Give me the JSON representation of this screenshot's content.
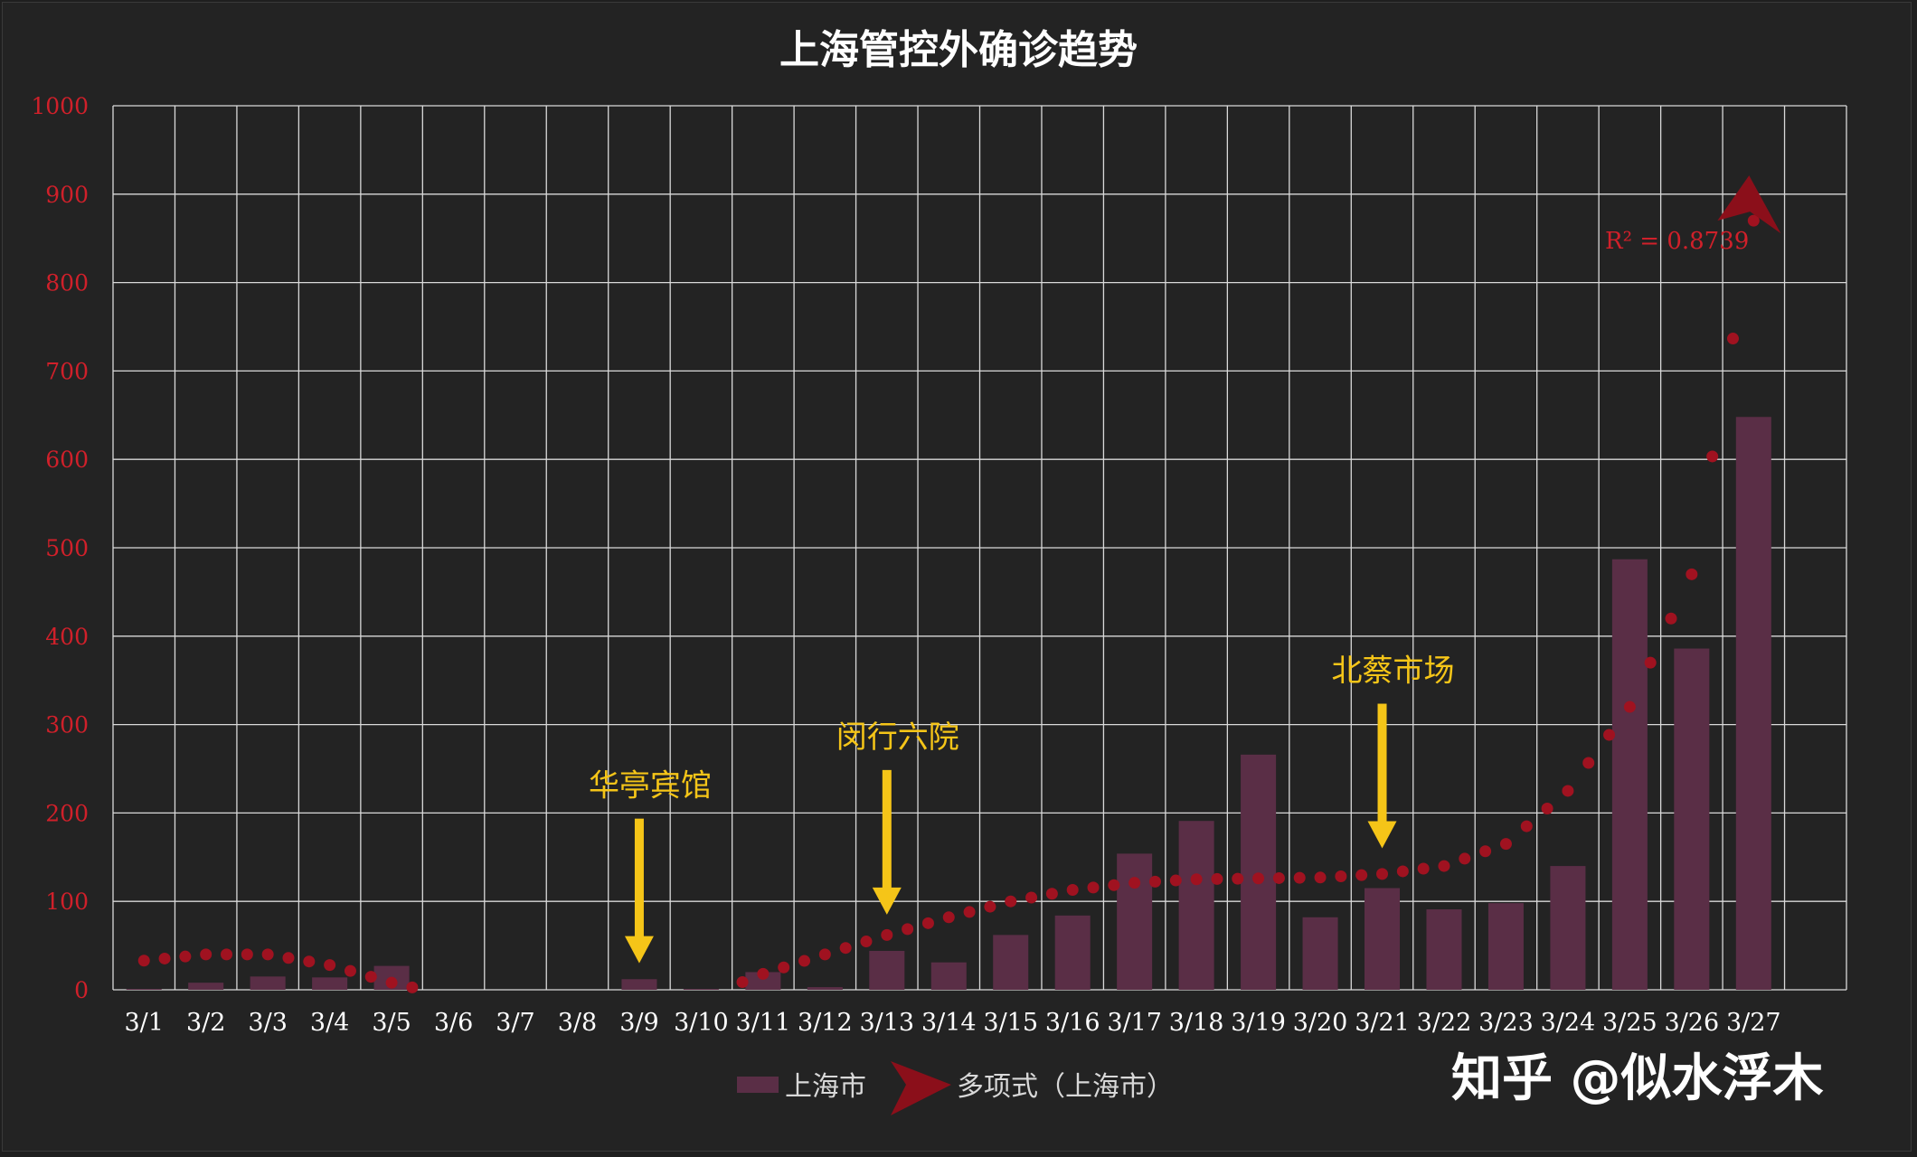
{
  "chart_data": {
    "type": "bar",
    "title": "上海管控外确诊趋势",
    "categories": [
      "3/1",
      "3/2",
      "3/3",
      "3/4",
      "3/5",
      "3/6",
      "3/7",
      "3/8",
      "3/9",
      "3/10",
      "3/11",
      "3/12",
      "3/13",
      "3/14",
      "3/15",
      "3/16",
      "3/17",
      "3/18",
      "3/19",
      "3/20",
      "3/21",
      "3/22",
      "3/23",
      "3/24",
      "3/25",
      "3/26",
      "3/27"
    ],
    "series": [
      {
        "name": "上海市",
        "type": "bar",
        "color": "#5a2e46",
        "values": [
          1,
          8,
          15,
          14,
          27,
          0,
          0,
          0,
          12,
          1,
          20,
          3,
          44,
          31,
          62,
          84,
          154,
          191,
          266,
          82,
          115,
          91,
          98,
          140,
          487,
          386,
          648
        ]
      },
      {
        "name": "多项式（上海市）",
        "type": "trendline",
        "color": "#a01220",
        "values": [
          33,
          40,
          40,
          28,
          8,
          -8,
          -20,
          -25,
          -22,
          -10,
          18,
          40,
          62,
          82,
          100,
          113,
          121,
          125,
          126,
          127,
          131,
          140,
          165,
          225,
          320,
          470,
          870
        ]
      }
    ],
    "ylim": [
      0,
      1000
    ],
    "yticks": [
      0,
      100,
      200,
      300,
      400,
      500,
      600,
      700,
      800,
      900,
      1000
    ],
    "grid": true,
    "legend_position": "bottom",
    "annotations": [
      {
        "text": "华亭宾馆",
        "category": "3/9",
        "value": 30
      },
      {
        "text": "闵行六院",
        "category": "3/13",
        "value": 85
      },
      {
        "text": "北蔡市场",
        "category": "3/21",
        "value": 160
      }
    ],
    "r_squared_label": "R² = 0.8739"
  },
  "watermark": "知乎 @似水浮木",
  "colors": {
    "background": "#232323",
    "grid": "#d9d9d9",
    "axis_text": "#d0202a",
    "annotation": "#f5c518"
  }
}
